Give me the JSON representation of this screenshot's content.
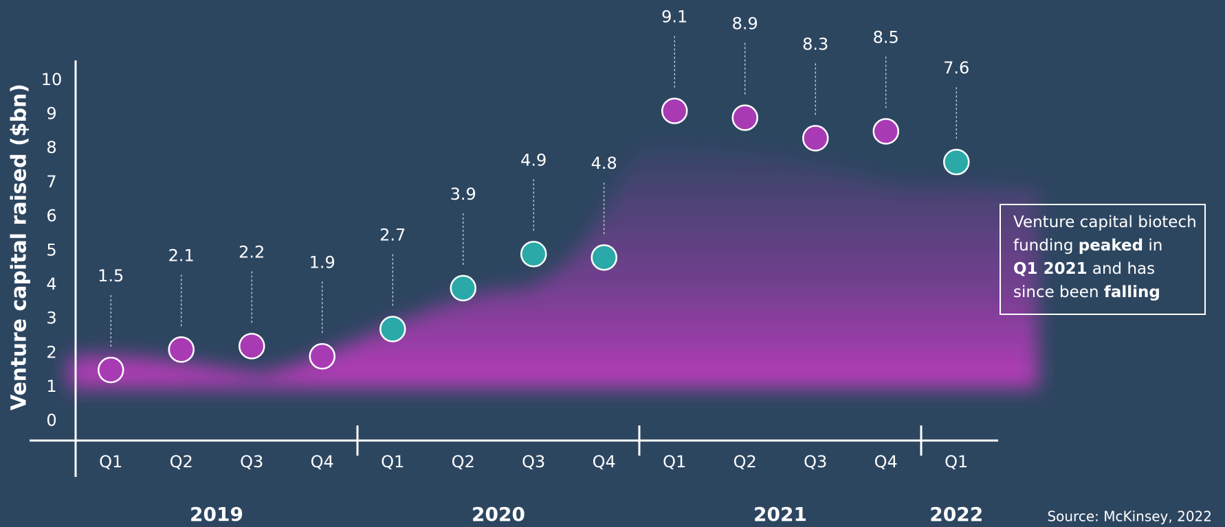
{
  "chart_data": {
    "type": "dot",
    "ylabel": "Venture capital raised ($bn)",
    "ylim": [
      -0.57,
      10.34
    ],
    "yticks": [
      0,
      1,
      2,
      3,
      4,
      5,
      6,
      7,
      8,
      9,
      10
    ],
    "groups": [
      {
        "label": "2019",
        "color": "#a83bb4",
        "categories": [
          "Q1",
          "Q2",
          "Q3",
          "Q4"
        ],
        "values": [
          1.5,
          2.1,
          2.2,
          1.9
        ]
      },
      {
        "label": "2020",
        "color": "#2aa9a8",
        "categories": [
          "Q1",
          "Q2",
          "Q3",
          "Q4"
        ],
        "values": [
          2.7,
          3.9,
          4.9,
          4.8
        ]
      },
      {
        "label": "2021",
        "color": "#a83bb4",
        "categories": [
          "Q1",
          "Q2",
          "Q3",
          "Q4"
        ],
        "values": [
          9.1,
          8.9,
          8.3,
          8.5
        ]
      },
      {
        "label": "2022",
        "color": "#2aa9a8",
        "categories": [
          "Q1"
        ],
        "values": [
          7.6
        ]
      }
    ],
    "annotation": [
      [
        {
          "text": "Venture capital biotech",
          "bold": false
        }
      ],
      [
        {
          "text": "funding ",
          "bold": false
        },
        {
          "text": "peaked",
          "bold": true
        },
        {
          "text": " in",
          "bold": false
        }
      ],
      [
        {
          "text": "Q1 2021",
          "bold": true
        },
        {
          "text": " and has",
          "bold": false
        }
      ],
      [
        {
          "text": "since been ",
          "bold": false
        },
        {
          "text": "falling",
          "bold": true
        }
      ]
    ],
    "source": "Source: McKinsey, 2022"
  }
}
